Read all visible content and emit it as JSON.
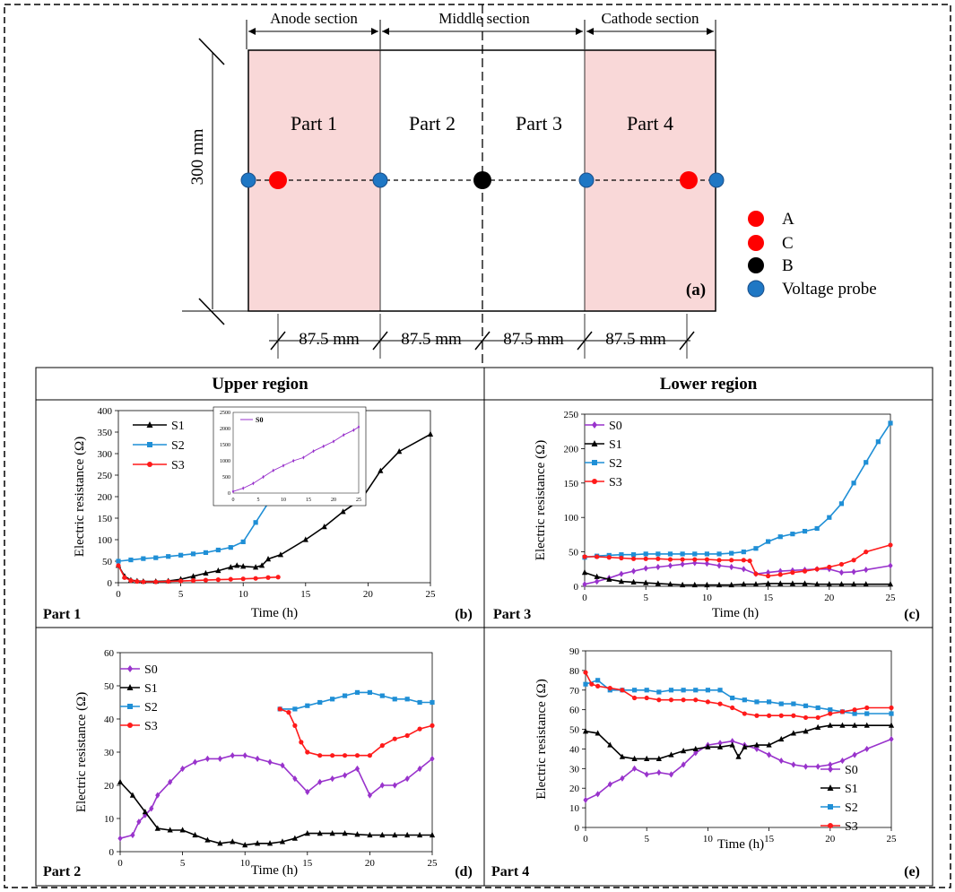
{
  "schematic": {
    "section_labels": [
      "Anode section",
      "Middle section",
      "Cathode section"
    ],
    "part_labels": [
      "Part 1",
      "Part 2",
      "Part 3",
      "Part 4"
    ],
    "height_label": "300 mm",
    "width_labels": [
      "87.5 mm",
      "87.5 mm",
      "87.5 mm",
      "87.5 mm"
    ],
    "panel_tag": "(a)",
    "legend": [
      {
        "label": "A",
        "color": "#ff0000"
      },
      {
        "label": "C",
        "color": "#ff0000"
      },
      {
        "label": "B",
        "color": "#000000"
      },
      {
        "label": "Voltage probe",
        "color": "#1f77c4"
      }
    ]
  },
  "regions": {
    "upper": "Upper region",
    "lower": "Lower region"
  },
  "colors": {
    "S0": "#9933cc",
    "S1": "#000000",
    "S2": "#1f8fd6",
    "S3": "#ff1a1a",
    "section_fill": "#f9d8d8"
  },
  "chart_data": [
    {
      "type": "line",
      "panel": "(b)",
      "part_label": "Part 1",
      "xlabel": "Time (h)",
      "ylabel": "Electric resistance (Ω)",
      "xlim": [
        0,
        25
      ],
      "ylim": [
        0,
        400
      ],
      "xticks": [
        0,
        5,
        10,
        15,
        20,
        25
      ],
      "yticks": [
        0,
        50,
        100,
        150,
        200,
        250,
        300,
        350,
        400
      ],
      "legend": [
        "S1",
        "S2",
        "S3"
      ],
      "series": [
        {
          "name": "S1",
          "marker": "triangle",
          "x": [
            0,
            0.5,
            1,
            1.5,
            2,
            3,
            4,
            5,
            6,
            7,
            8,
            9,
            9.5,
            10,
            11,
            11.5,
            12,
            13,
            15,
            16.5,
            18,
            19.5,
            21,
            22.5,
            25
          ],
          "y": [
            40,
            15,
            6,
            4,
            3,
            3,
            4,
            8,
            15,
            22,
            28,
            36,
            40,
            38,
            36,
            40,
            55,
            65,
            100,
            130,
            165,
            195,
            260,
            305,
            345
          ]
        },
        {
          "name": "S2",
          "marker": "square",
          "x": [
            0,
            1,
            2,
            3,
            4,
            5,
            6,
            7,
            8,
            9,
            10,
            11,
            12,
            12.8
          ],
          "y": [
            50,
            53,
            56,
            58,
            61,
            64,
            67,
            70,
            76,
            82,
            95,
            140,
            185,
            190
          ]
        },
        {
          "name": "S3",
          "marker": "circle",
          "x": [
            0,
            0.5,
            1,
            1.5,
            2,
            3,
            4,
            5,
            6,
            7,
            8,
            9,
            10,
            11,
            12,
            12.8
          ],
          "y": [
            40,
            12,
            5,
            3,
            2,
            2,
            3,
            4,
            5,
            6,
            7,
            8,
            9,
            10,
            12,
            13
          ]
        }
      ],
      "inset": {
        "xlim": [
          0,
          25
        ],
        "ylim": [
          0,
          2500
        ],
        "xticks": [
          0,
          5,
          10,
          15,
          20,
          25
        ],
        "yticks": [
          0,
          500,
          1000,
          1500,
          2000,
          2500
        ],
        "legend": [
          "S0"
        ],
        "series": [
          {
            "name": "S0",
            "x": [
              0,
              2,
              4,
              6,
              8,
              10,
              12,
              14,
              16,
              18,
              20,
              22,
              24,
              25
            ],
            "y": [
              50,
              150,
              300,
              500,
              700,
              850,
              1000,
              1100,
              1300,
              1450,
              1600,
              1800,
              1950,
              2050
            ]
          }
        ]
      }
    },
    {
      "type": "line",
      "panel": "(c)",
      "part_label": "Part 3",
      "xlabel": "Time (h)",
      "ylabel": "Electric resistance (Ω)",
      "xlim": [
        0,
        25
      ],
      "ylim": [
        0,
        250
      ],
      "xticks": [
        0,
        5,
        10,
        15,
        20,
        25
      ],
      "yticks": [
        0,
        50,
        100,
        150,
        200,
        250
      ],
      "legend": [
        "S0",
        "S1",
        "S2",
        "S3"
      ],
      "series": [
        {
          "name": "S0",
          "marker": "diamond",
          "x": [
            0,
            1,
            2,
            3,
            4,
            5,
            6,
            7,
            8,
            9,
            10,
            11,
            12,
            13,
            14,
            15,
            16,
            17,
            18,
            19,
            20,
            21,
            22,
            23,
            25
          ],
          "y": [
            3,
            7,
            12,
            18,
            22,
            26,
            28,
            30,
            32,
            34,
            33,
            30,
            28,
            25,
            18,
            20,
            22,
            23,
            24,
            25,
            25,
            20,
            21,
            24,
            30
          ]
        },
        {
          "name": "S1",
          "marker": "triangle",
          "x": [
            0,
            1,
            2,
            3,
            4,
            5,
            6,
            7,
            8,
            9,
            10,
            11,
            12,
            13,
            14,
            15,
            16,
            17,
            18,
            19,
            20,
            21,
            22,
            23,
            25
          ],
          "y": [
            20,
            14,
            10,
            7,
            6,
            5,
            4,
            3,
            2,
            2,
            2,
            2,
            2,
            3,
            3,
            4,
            4,
            4,
            4,
            3,
            3,
            3,
            3,
            3,
            3
          ]
        },
        {
          "name": "S2",
          "marker": "square",
          "x": [
            0,
            1,
            2,
            3,
            4,
            5,
            6,
            7,
            8,
            9,
            10,
            11,
            12,
            13,
            14,
            15,
            16,
            17,
            18,
            19,
            20,
            21,
            22,
            23,
            24,
            25
          ],
          "y": [
            42,
            44,
            45,
            46,
            46,
            47,
            47,
            47,
            47,
            47,
            47,
            47,
            48,
            50,
            55,
            65,
            72,
            76,
            80,
            84,
            100,
            120,
            150,
            180,
            210,
            237
          ]
        },
        {
          "name": "S3",
          "marker": "circle",
          "x": [
            0,
            1,
            2,
            3,
            4,
            5,
            6,
            7,
            8,
            9,
            10,
            11,
            12,
            13,
            13.5,
            14,
            15,
            16,
            17,
            18,
            19,
            20,
            21,
            22,
            23,
            25
          ],
          "y": [
            43,
            43,
            42,
            41,
            40,
            40,
            40,
            39,
            39,
            39,
            39,
            38,
            38,
            38,
            37,
            18,
            15,
            17,
            20,
            22,
            25,
            28,
            32,
            38,
            50,
            60
          ]
        }
      ]
    },
    {
      "type": "line",
      "panel": "(d)",
      "part_label": "Part 2",
      "xlabel": "Time (h)",
      "ylabel": "Electric resistance (Ω)",
      "xlim": [
        0,
        25
      ],
      "ylim": [
        0,
        60
      ],
      "xticks": [
        0,
        5,
        10,
        15,
        20,
        25
      ],
      "yticks": [
        0,
        10,
        20,
        30,
        40,
        50,
        60
      ],
      "legend": [
        "S0",
        "S1",
        "S2",
        "S3"
      ],
      "series": [
        {
          "name": "S0",
          "marker": "diamond",
          "x": [
            0,
            1,
            1.5,
            2,
            2.5,
            3,
            4,
            5,
            6,
            7,
            8,
            9,
            10,
            11,
            12,
            13,
            14,
            15,
            16,
            17,
            18,
            19,
            20,
            21,
            22,
            23,
            24,
            25
          ],
          "y": [
            4,
            5,
            9,
            11,
            13,
            17,
            21,
            25,
            27,
            28,
            28,
            29,
            29,
            28,
            27,
            26,
            22,
            18,
            21,
            22,
            23,
            25,
            17,
            20,
            20,
            22,
            25,
            28
          ]
        },
        {
          "name": "S1",
          "marker": "triangle",
          "x": [
            0,
            1,
            2,
            3,
            4,
            5,
            6,
            7,
            8,
            9,
            10,
            11,
            12,
            13,
            14,
            15,
            16,
            17,
            18,
            19,
            20,
            21,
            22,
            23,
            24,
            25
          ],
          "y": [
            21,
            17,
            12,
            7,
            6.5,
            6.5,
            5,
            3.5,
            2.5,
            3,
            2,
            2.5,
            2.5,
            3,
            4,
            5.5,
            5.5,
            5.5,
            5.5,
            5.2,
            5,
            5,
            5,
            5,
            5,
            5
          ]
        },
        {
          "name": "S2",
          "marker": "square",
          "x": [
            12.8,
            14,
            15,
            16,
            17,
            18,
            19,
            20,
            21,
            22,
            23,
            24,
            25
          ],
          "y": [
            43,
            43,
            44,
            45,
            46,
            47,
            48,
            48,
            47,
            46,
            46,
            45,
            45
          ]
        },
        {
          "name": "S3",
          "marker": "circle",
          "x": [
            12.8,
            13.5,
            14,
            14.5,
            15,
            16,
            17,
            18,
            19,
            20,
            21,
            22,
            23,
            24,
            25
          ],
          "y": [
            43,
            42,
            38,
            33,
            30,
            29,
            29,
            29,
            29,
            29,
            32,
            34,
            35,
            37,
            38
          ]
        }
      ]
    },
    {
      "type": "line",
      "panel": "(e)",
      "part_label": "Part 4",
      "xlabel": "Time (h)",
      "ylabel": "Electric resistance (Ω)",
      "xlim": [
        0,
        25
      ],
      "ylim": [
        0,
        90
      ],
      "xticks": [
        0,
        5,
        10,
        15,
        20,
        25
      ],
      "yticks": [
        0,
        10,
        20,
        30,
        40,
        50,
        60,
        70,
        80,
        90
      ],
      "legend": [
        "S0",
        "S1",
        "S2",
        "S3"
      ],
      "series": [
        {
          "name": "S0",
          "marker": "diamond",
          "x": [
            0,
            1,
            2,
            3,
            4,
            5,
            6,
            7,
            8,
            9,
            10,
            11,
            12,
            13,
            14,
            15,
            16,
            17,
            18,
            19,
            20,
            21,
            22,
            23,
            25
          ],
          "y": [
            14,
            17,
            22,
            25,
            30,
            27,
            28,
            27,
            32,
            38,
            42,
            43,
            44,
            42,
            40,
            37,
            34,
            32,
            31,
            31,
            32,
            34,
            37,
            40,
            45
          ]
        },
        {
          "name": "S1",
          "marker": "triangle",
          "x": [
            0,
            1,
            2,
            3,
            4,
            5,
            6,
            7,
            8,
            9,
            10,
            11,
            12,
            12.5,
            13,
            14,
            15,
            16,
            17,
            18,
            19,
            20,
            21,
            22,
            23,
            25
          ],
          "y": [
            49,
            48,
            42,
            36,
            35,
            35,
            35,
            37,
            39,
            40,
            41,
            41,
            42,
            36,
            41,
            42,
            42,
            45,
            48,
            49,
            51,
            52,
            52,
            52,
            52,
            52
          ]
        },
        {
          "name": "S2",
          "marker": "square",
          "x": [
            0,
            1,
            2,
            3,
            4,
            5,
            6,
            7,
            8,
            9,
            10,
            11,
            12,
            13,
            14,
            15,
            16,
            17,
            18,
            19,
            20,
            21,
            22,
            23,
            25
          ],
          "y": [
            73,
            75,
            70,
            70,
            70,
            70,
            69,
            70,
            70,
            70,
            70,
            70,
            66,
            65,
            64,
            64,
            63,
            63,
            62,
            61,
            60,
            59,
            58,
            58,
            58
          ]
        },
        {
          "name": "S3",
          "marker": "circle",
          "x": [
            0,
            0.5,
            1,
            2,
            3,
            4,
            5,
            6,
            7,
            8,
            9,
            10,
            11,
            12,
            13,
            14,
            15,
            16,
            17,
            18,
            19,
            20,
            21,
            22,
            23,
            25
          ],
          "y": [
            79,
            73,
            72,
            71,
            70,
            66,
            66,
            65,
            65,
            65,
            65,
            64,
            63,
            61,
            58,
            57,
            57,
            57,
            57,
            56,
            56,
            58,
            59,
            60,
            61,
            61
          ]
        }
      ]
    }
  ]
}
